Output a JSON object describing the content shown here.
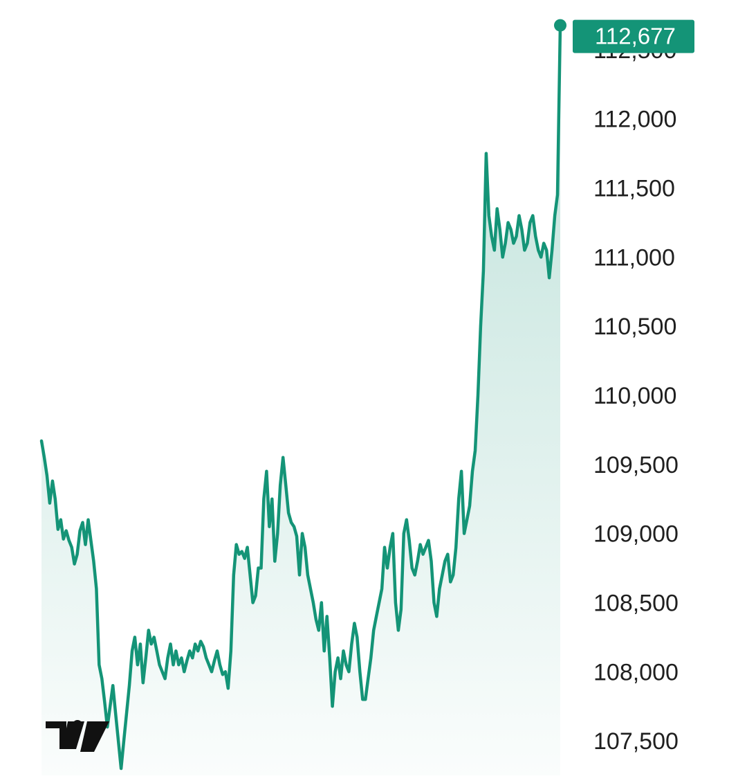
{
  "colors": {
    "line": "#149477",
    "fill_top": "#149477",
    "label_bg": "#149477",
    "label_text": "#ffffff",
    "tick_text": "#1f1f1f",
    "logo": "#111111"
  },
  "icons": {
    "logo": "tradingview-logo-icon"
  },
  "last_price": {
    "label": "112,677",
    "value": 112677
  },
  "chart_data": {
    "type": "area",
    "title": "",
    "xlabel": "",
    "ylabel": "",
    "ylim": [
      107250,
      112760
    ],
    "grid": false,
    "legend": "none",
    "y_ticks": [
      {
        "value": 112500,
        "label": "112,500"
      },
      {
        "value": 112000,
        "label": "112,000"
      },
      {
        "value": 111500,
        "label": "111,500"
      },
      {
        "value": 111000,
        "label": "111,000"
      },
      {
        "value": 110500,
        "label": "110,500"
      },
      {
        "value": 110000,
        "label": "110,000"
      },
      {
        "value": 109500,
        "label": "109,500"
      },
      {
        "value": 109000,
        "label": "109,000"
      },
      {
        "value": 108500,
        "label": "108,500"
      },
      {
        "value": 108000,
        "label": "108,000"
      },
      {
        "value": 107500,
        "label": "107,500"
      }
    ],
    "series": [
      {
        "values": [
          109670,
          109550,
          109420,
          109220,
          109380,
          109250,
          109030,
          109100,
          108960,
          109020,
          108950,
          108900,
          108780,
          108850,
          109020,
          109080,
          108920,
          109100,
          108950,
          108800,
          108600,
          108050,
          107950,
          107780,
          107600,
          107750,
          107900,
          107700,
          107500,
          107300,
          107500,
          107700,
          107900,
          108150,
          108250,
          108050,
          108200,
          107920,
          108100,
          108300,
          108200,
          108250,
          108150,
          108050,
          108000,
          107950,
          108100,
          108200,
          108050,
          108150,
          108050,
          108100,
          108000,
          108080,
          108150,
          108100,
          108200,
          108150,
          108220,
          108180,
          108100,
          108050,
          108000,
          108080,
          108150,
          108050,
          107980,
          108000,
          107880,
          108150,
          108700,
          108920,
          108850,
          108870,
          108820,
          108900,
          108700,
          108500,
          108550,
          108750,
          108750,
          109250,
          109450,
          109050,
          109250,
          108800,
          109000,
          109350,
          109550,
          109350,
          109150,
          109080,
          109050,
          108980,
          108700,
          109000,
          108900,
          108700,
          108600,
          108500,
          108380,
          108300,
          108500,
          108150,
          108400,
          108100,
          107750,
          108000,
          108100,
          107950,
          108150,
          108050,
          108000,
          108200,
          108350,
          108250,
          108000,
          107800,
          107800,
          107950,
          108100,
          108300,
          108400,
          108500,
          108600,
          108900,
          108750,
          108900,
          109000,
          108500,
          108300,
          108450,
          109000,
          109100,
          108950,
          108750,
          108700,
          108800,
          108920,
          108850,
          108900,
          108950,
          108800,
          108500,
          108400,
          108600,
          108700,
          108800,
          108850,
          108650,
          108700,
          108900,
          109250,
          109450,
          109000,
          109100,
          109200,
          109450,
          109600,
          110000,
          110500,
          110900,
          111750,
          111300,
          111150,
          111050,
          111350,
          111200,
          111000,
          111100,
          111250,
          111200,
          111100,
          111150,
          111300,
          111200,
          111050,
          111100,
          111250,
          111300,
          111150,
          111050,
          111000,
          111100,
          111050,
          110850,
          111050,
          111300,
          111450,
          112677
        ]
      }
    ]
  }
}
